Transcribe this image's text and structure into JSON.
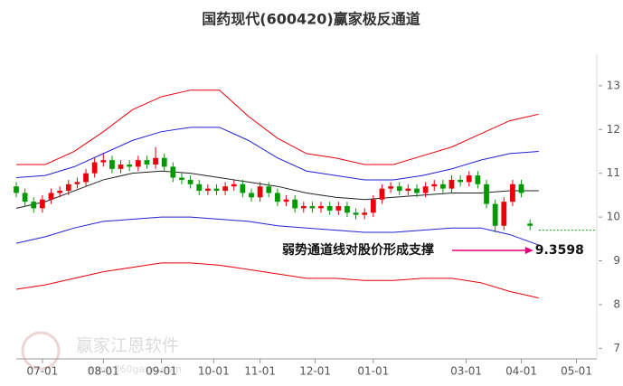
{
  "chart_data": {
    "type": "candlestick",
    "title": "国药现代(600420)赢家极反通道",
    "xlim": [
      0,
      200
    ],
    "xticks": [
      {
        "value": 9,
        "label": "07-01"
      },
      {
        "value": 30,
        "label": "08-01"
      },
      {
        "value": 50,
        "label": "09-01"
      },
      {
        "value": 68,
        "label": "10-01"
      },
      {
        "value": 84,
        "label": "11-01"
      },
      {
        "value": 103,
        "label": "12-01"
      },
      {
        "value": 123,
        "label": "01-01"
      },
      {
        "value": 155,
        "label": "03-01"
      },
      {
        "value": 174,
        "label": "04-01"
      },
      {
        "value": 193,
        "label": "05-01"
      }
    ],
    "ylim": [
      6.8,
      13.72
    ],
    "yticks": [
      7,
      8,
      9,
      10,
      11,
      12,
      13
    ],
    "candles": {
      "up_color": "#e8000b",
      "down_color": "#009900",
      "x": [
        0,
        3,
        6,
        9,
        12,
        15,
        18,
        21,
        24,
        27,
        30,
        33,
        36,
        39,
        42,
        45,
        48,
        51,
        54,
        57,
        60,
        63,
        66,
        69,
        72,
        75,
        78,
        81,
        84,
        87,
        90,
        93,
        96,
        99,
        102,
        105,
        108,
        111,
        114,
        117,
        120,
        123,
        126,
        129,
        132,
        135,
        138,
        141,
        144,
        147,
        150,
        153,
        156,
        159,
        162,
        165,
        168,
        171,
        174,
        177
      ],
      "open": [
        10.7,
        10.55,
        10.35,
        10.2,
        10.4,
        10.55,
        10.6,
        10.75,
        10.8,
        11.0,
        11.25,
        11.3,
        11.1,
        11.2,
        11.15,
        11.3,
        11.2,
        11.35,
        11.15,
        10.9,
        10.85,
        10.75,
        10.6,
        10.65,
        10.6,
        10.7,
        10.75,
        10.55,
        10.45,
        10.7,
        10.55,
        10.35,
        10.4,
        10.2,
        10.25,
        10.2,
        10.25,
        10.15,
        10.25,
        10.1,
        10.05,
        10.1,
        10.4,
        10.65,
        10.7,
        10.6,
        10.65,
        10.55,
        10.7,
        10.75,
        10.65,
        10.85,
        10.8,
        10.95,
        10.75,
        10.3,
        9.8,
        10.35,
        10.75,
        9.85
      ],
      "high": [
        10.8,
        10.65,
        10.45,
        10.5,
        10.65,
        10.7,
        10.85,
        10.9,
        11.1,
        11.35,
        11.45,
        11.4,
        11.3,
        11.3,
        11.4,
        11.4,
        11.6,
        11.45,
        11.25,
        11.0,
        10.95,
        10.85,
        10.75,
        10.75,
        10.8,
        10.85,
        10.85,
        10.65,
        10.8,
        10.8,
        10.65,
        10.5,
        10.5,
        10.35,
        10.35,
        10.35,
        10.35,
        10.35,
        10.35,
        10.2,
        10.2,
        10.5,
        10.75,
        10.8,
        10.8,
        10.75,
        10.75,
        10.8,
        10.85,
        10.85,
        10.95,
        10.95,
        11.05,
        11.05,
        10.85,
        10.4,
        10.45,
        10.85,
        10.85,
        9.95
      ],
      "low": [
        10.45,
        10.25,
        10.1,
        10.1,
        10.3,
        10.45,
        10.5,
        10.65,
        10.7,
        10.9,
        11.15,
        11.0,
        11.0,
        11.05,
        11.05,
        11.1,
        11.1,
        11.05,
        10.8,
        10.75,
        10.65,
        10.5,
        10.5,
        10.5,
        10.5,
        10.6,
        10.45,
        10.35,
        10.35,
        10.45,
        10.25,
        10.25,
        10.1,
        10.1,
        10.1,
        10.1,
        10.05,
        10.05,
        10.0,
        9.95,
        9.95,
        10.0,
        10.3,
        10.55,
        10.5,
        10.5,
        10.45,
        10.45,
        10.6,
        10.55,
        10.55,
        10.7,
        10.7,
        10.65,
        10.2,
        9.65,
        9.7,
        10.25,
        10.45,
        9.7
      ],
      "close": [
        10.55,
        10.35,
        10.2,
        10.4,
        10.55,
        10.6,
        10.75,
        10.8,
        11.0,
        11.25,
        11.3,
        11.1,
        11.2,
        11.15,
        11.3,
        11.2,
        11.35,
        11.15,
        10.9,
        10.85,
        10.75,
        10.6,
        10.65,
        10.6,
        10.7,
        10.75,
        10.55,
        10.45,
        10.7,
        10.55,
        10.35,
        10.4,
        10.2,
        10.25,
        10.2,
        10.25,
        10.15,
        10.25,
        10.1,
        10.05,
        10.1,
        10.4,
        10.65,
        10.7,
        10.6,
        10.65,
        10.55,
        10.7,
        10.75,
        10.65,
        10.85,
        10.8,
        10.95,
        10.75,
        10.3,
        9.8,
        10.35,
        10.75,
        10.55,
        9.8
      ]
    },
    "channel_x": [
      0,
      10,
      20,
      30,
      40,
      50,
      60,
      70,
      80,
      90,
      100,
      110,
      120,
      130,
      140,
      150,
      160,
      170,
      180
    ],
    "series": [
      {
        "color": "#e8000b",
        "values": [
          11.2,
          11.2,
          11.5,
          11.95,
          12.45,
          12.75,
          12.9,
          12.9,
          12.3,
          11.8,
          11.45,
          11.35,
          11.2,
          11.2,
          11.4,
          11.6,
          11.9,
          12.2,
          12.35
        ]
      },
      {
        "color": "#2020d0",
        "values": [
          10.9,
          10.95,
          11.15,
          11.45,
          11.75,
          11.95,
          12.05,
          12.05,
          11.75,
          11.35,
          11.05,
          10.95,
          10.85,
          10.85,
          10.95,
          11.1,
          11.3,
          11.45,
          11.5
        ]
      },
      {
        "color": "#222222",
        "values": [
          10.2,
          10.35,
          10.6,
          10.85,
          11.0,
          11.05,
          11.0,
          10.9,
          10.8,
          10.7,
          10.55,
          10.45,
          10.4,
          10.45,
          10.5,
          10.55,
          10.55,
          10.6,
          10.6
        ]
      },
      {
        "color": "#2020d0",
        "values": [
          9.4,
          9.55,
          9.75,
          9.9,
          9.95,
          10.0,
          10.0,
          9.95,
          9.9,
          9.8,
          9.75,
          9.7,
          9.65,
          9.65,
          9.7,
          9.75,
          9.75,
          9.6,
          9.36
        ]
      },
      {
        "color": "#e8000b",
        "values": [
          8.35,
          8.45,
          8.6,
          8.75,
          8.85,
          8.95,
          8.95,
          8.9,
          8.8,
          8.7,
          8.6,
          8.6,
          8.55,
          8.55,
          8.6,
          8.6,
          8.5,
          8.3,
          8.15
        ]
      }
    ],
    "reference_line": {
      "value": 9.7,
      "from": 180,
      "color": "#009900"
    },
    "annotation": {
      "text": "弱势通道线对股价形成支撑",
      "value": 9.3598,
      "color": "#e0007a"
    },
    "watermark": {
      "text": "赢家江恩软件",
      "url": "www.360gann.com"
    }
  }
}
